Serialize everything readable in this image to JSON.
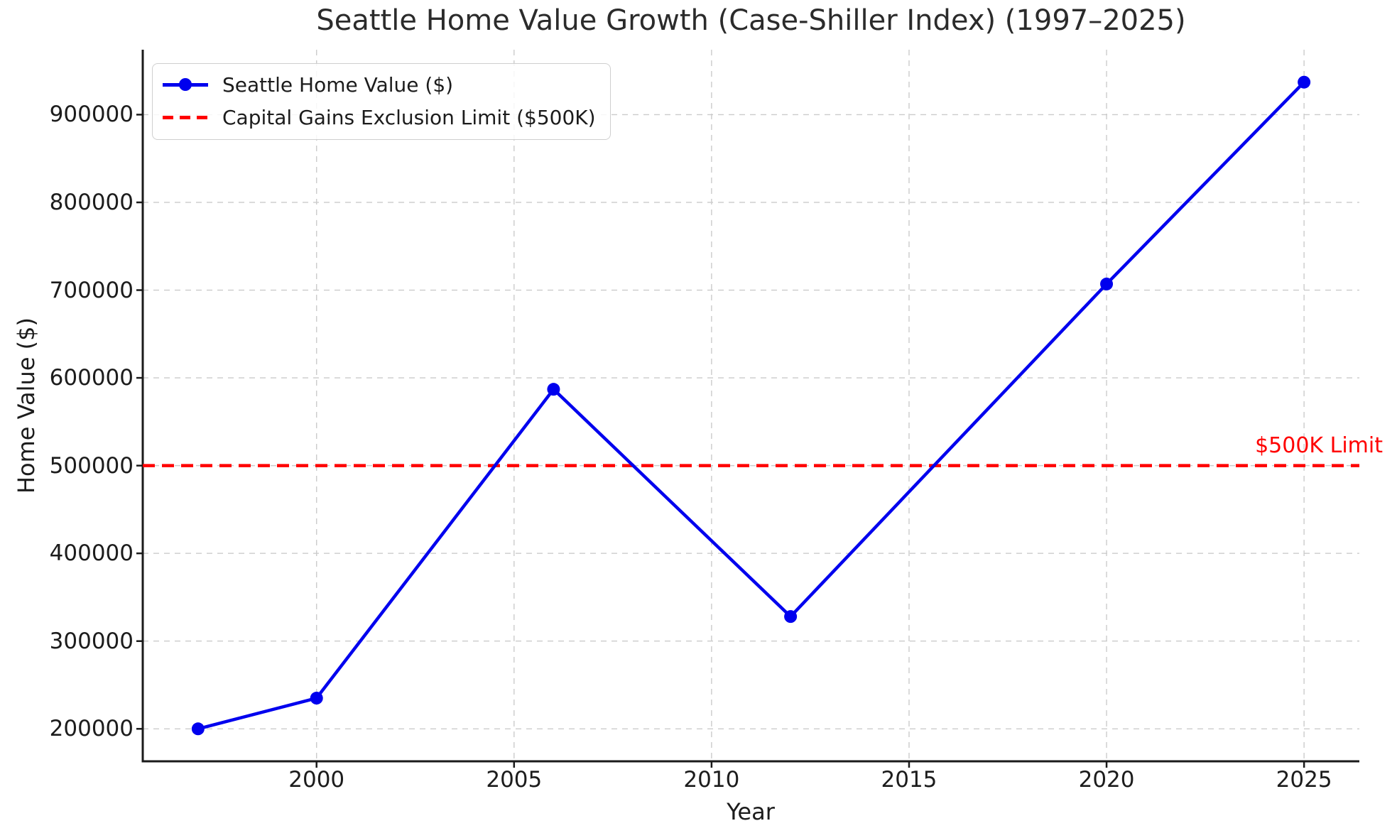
{
  "chart_data": {
    "type": "line",
    "title": "Seattle Home Value Growth (Case-Shiller Index) (1997–2025)",
    "xlabel": "Year",
    "ylabel": "Home Value ($)",
    "x_ticks": [
      2000,
      2005,
      2010,
      2015,
      2020,
      2025
    ],
    "y_ticks": [
      200000,
      300000,
      400000,
      500000,
      600000,
      700000,
      800000,
      900000
    ],
    "xlim": [
      1995.6,
      2026.4
    ],
    "ylim": [
      163000,
      974000
    ],
    "grid": {
      "visible": true,
      "style": "dashed",
      "color": "#cbcbcb"
    },
    "legend_position": "upper-left",
    "series": [
      {
        "name": "Seattle Home Value ($)",
        "type": "line",
        "color": "#0000ee",
        "marker": "circle",
        "x": [
          1997,
          2000,
          2006,
          2012,
          2020,
          2025
        ],
        "y": [
          200000,
          235000,
          587000,
          328000,
          707000,
          937000
        ]
      }
    ],
    "reference_lines": [
      {
        "name": "Capital Gains Exclusion Limit ($500K)",
        "axis": "y",
        "value": 500000,
        "style": "dashed",
        "color": "#ff0000",
        "annotation": "$500K Limit"
      }
    ]
  }
}
